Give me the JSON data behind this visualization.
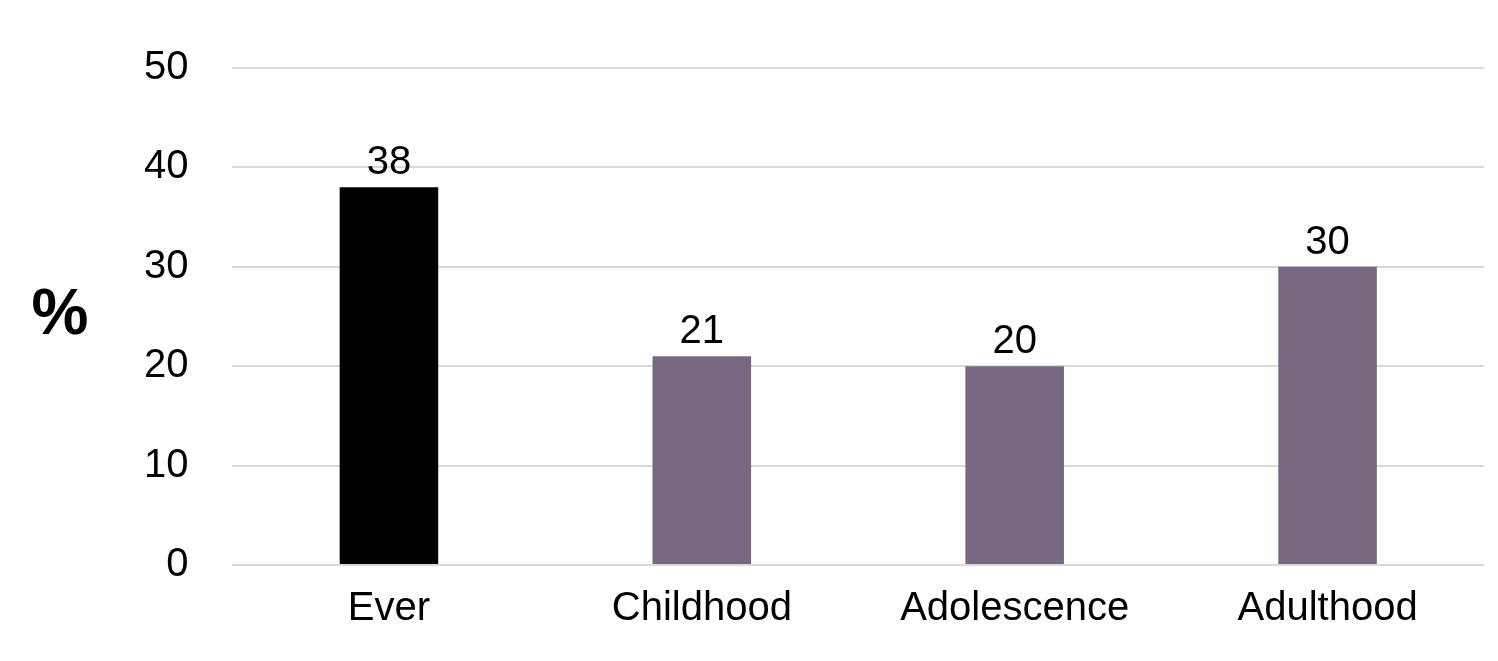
{
  "chart_data": {
    "type": "bar",
    "ylabel": "%",
    "categories": [
      "Ever",
      "Childhood",
      "Adolescence",
      "Adulthood"
    ],
    "values": [
      38,
      21,
      20,
      30
    ],
    "colors": [
      "#000000",
      "#776780",
      "#776780",
      "#776780"
    ],
    "ylim": [
      0,
      50
    ],
    "yticks": [
      0,
      10,
      20,
      30,
      40,
      50
    ],
    "grid": "y",
    "data_labels": true
  }
}
